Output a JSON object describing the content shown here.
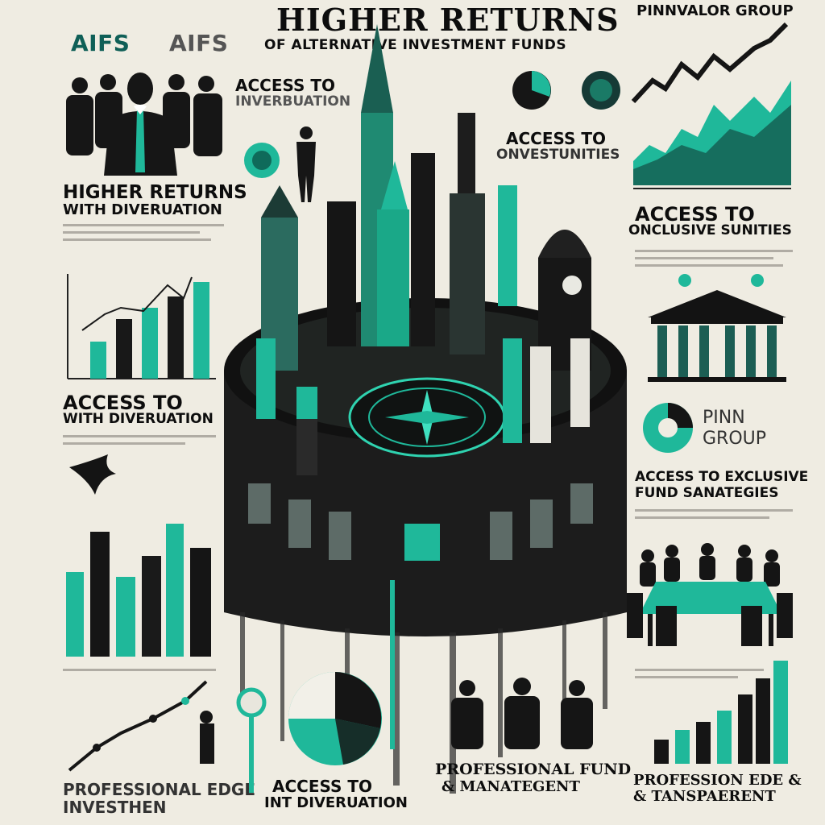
{
  "header": {
    "title": "HIGHER RETURNS",
    "subtitle": "OF ALTERNATIVE INVESTMENT FUNDS",
    "brand": "PINNVALOR GROUP"
  },
  "colors": {
    "teal": "#1fb89a",
    "dark": "#111111",
    "paper": "#efece2",
    "gray": "#8d8a82"
  },
  "labels": {
    "aifs_1": "AIFS",
    "aifs_2": "AIFS",
    "access_inv": "ACCESS TO",
    "access_inv_2": "INVERBUATION",
    "access_onv": "ACCESS TO",
    "access_onv_2": "ONVESTUNITIES",
    "higher_returns": "HIGHER RETURNS",
    "with_div": "WITH DIVERUATION",
    "access_exclusive": "ACCESS TO",
    "access_exclusive_2": "ONCLUSIVE SUNITIES",
    "access_with": "ACCESS TO",
    "access_with_2": "WITH DIVERUATION",
    "pinn_group_1": "PINN",
    "pinn_group_2": "GROUP",
    "fund_strategies_1": "ACCESS TO EXCLUSIVE",
    "fund_strategies_2": "FUND SANATEGIES",
    "professional_edge_1": "PROFESSIONAL EDGE",
    "professional_edge_2": "INVESTHEN",
    "access_int_1": "ACCESS TO",
    "access_int_2": "INT DIVERUATION",
    "professional_fund_1": "PROFESSIONAL FUND",
    "professional_fund_2": "& MANATEGENT",
    "profession_1": "PROFESSION EDE &",
    "profession_2": "& TANSPAERENT"
  }
}
